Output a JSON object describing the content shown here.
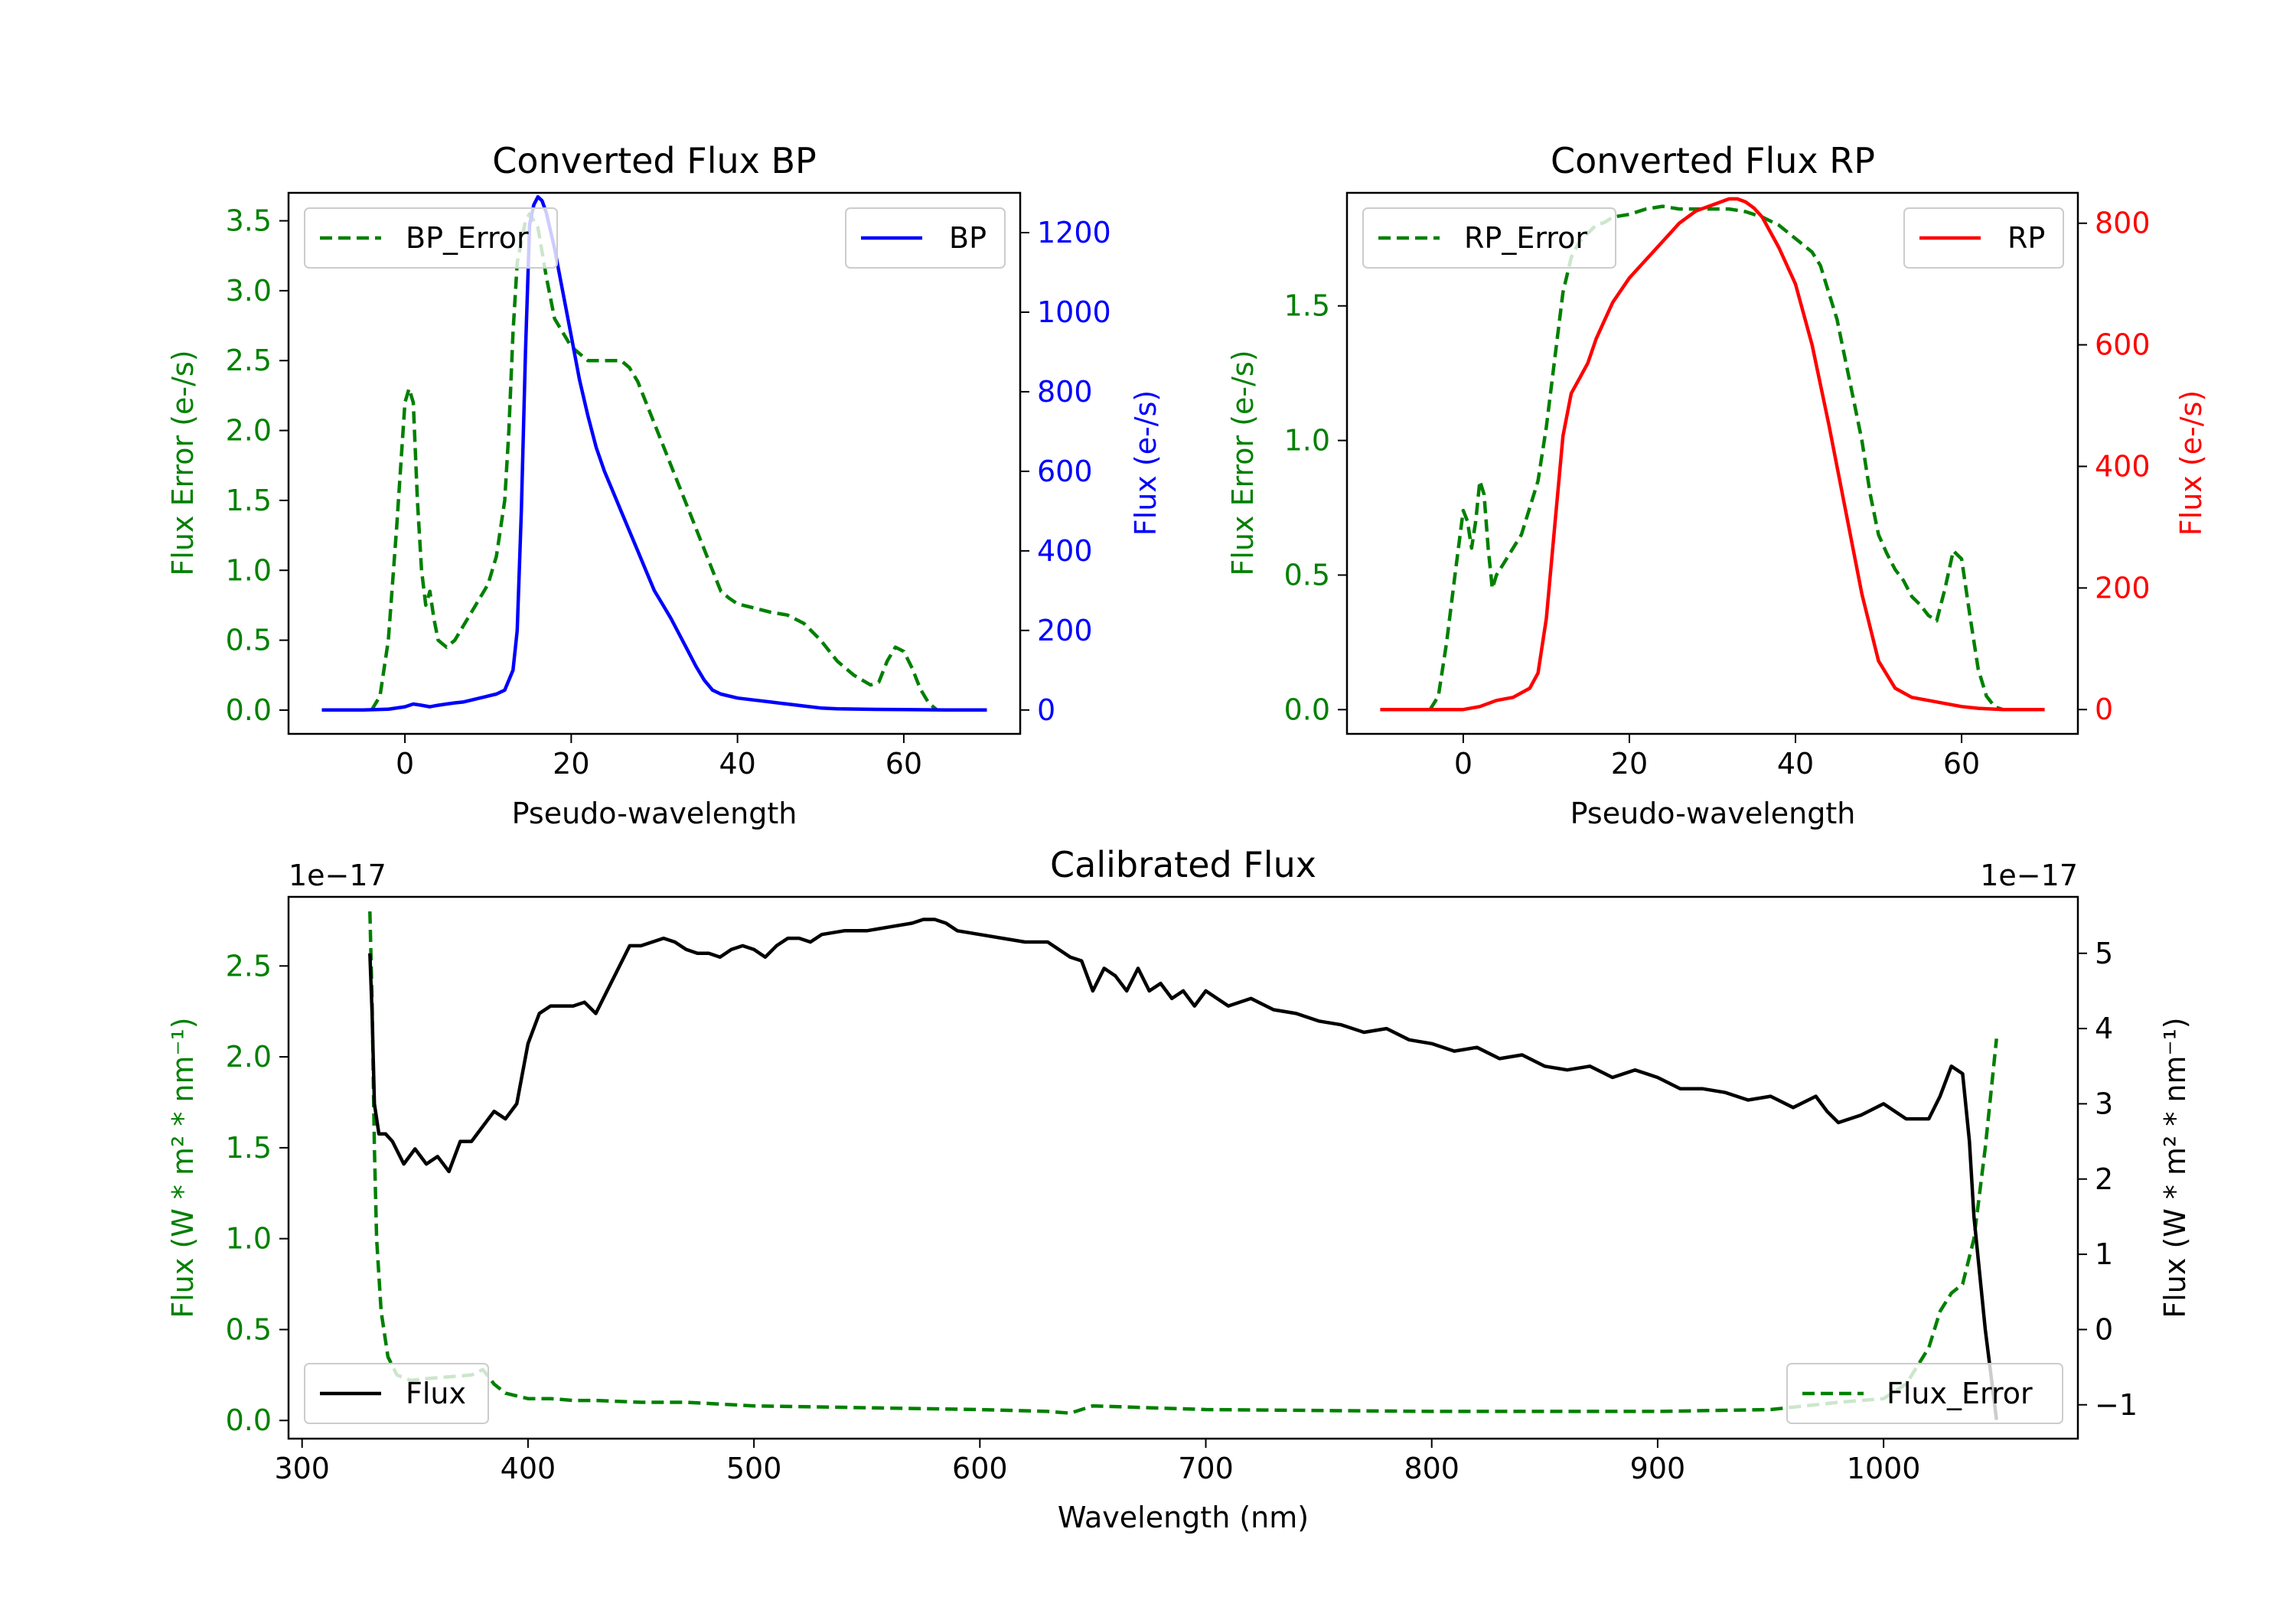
{
  "chart_data": [
    {
      "id": "bp",
      "type": "line",
      "title": "Converted Flux BP",
      "xlabel": "Pseudo-wavelength",
      "ylabel_left": "Flux Error (e-/s)",
      "ylabel_right": "Flux (e-/s)",
      "xlim": [
        -14,
        74
      ],
      "ylim_left": [
        -0.17,
        3.7
      ],
      "ylim_right": [
        -60,
        1300
      ],
      "xticks": [
        "0",
        "20",
        "40",
        "60"
      ],
      "xtick_values": [
        0,
        20,
        40,
        60
      ],
      "yticks_left": [
        "0.0",
        "0.5",
        "1.0",
        "1.5",
        "2.0",
        "2.5",
        "3.0",
        "3.5"
      ],
      "ytick_values_left": [
        0,
        0.5,
        1,
        1.5,
        2,
        2.5,
        3,
        3.5
      ],
      "yticks_right": [
        "0",
        "200",
        "400",
        "600",
        "800",
        "1000",
        "1200"
      ],
      "ytick_values_right": [
        0,
        200,
        400,
        600,
        800,
        1000,
        1200
      ],
      "left_color": "#008000",
      "right_color": "#0000ff",
      "series": [
        {
          "name": "BP_Error",
          "axis": "left",
          "color": "#008000",
          "style": "dashed",
          "legend": "top-left",
          "x": [
            -4,
            -3,
            -2,
            -1,
            0,
            0.5,
            1,
            1.5,
            2,
            2.5,
            3,
            3.5,
            4,
            5,
            6,
            7,
            8,
            10,
            11,
            12,
            12.5,
            13,
            13.5,
            14,
            14.5,
            15,
            16,
            17,
            18,
            19,
            20,
            21,
            22,
            23,
            24,
            25,
            26,
            27,
            28,
            29,
            30,
            31,
            32,
            33,
            34,
            35,
            36,
            37,
            38,
            39,
            40,
            42,
            44,
            46,
            48,
            50,
            52,
            54,
            56,
            57,
            58,
            59,
            60,
            61,
            62,
            63,
            64
          ],
          "y": [
            0.0,
            0.1,
            0.5,
            1.3,
            2.2,
            2.3,
            2.2,
            1.5,
            1.0,
            0.75,
            0.85,
            0.65,
            0.5,
            0.45,
            0.5,
            0.6,
            0.7,
            0.9,
            1.1,
            1.5,
            2.0,
            2.7,
            3.2,
            3.35,
            3.5,
            3.55,
            3.45,
            3.1,
            2.8,
            2.7,
            2.6,
            2.55,
            2.5,
            2.5,
            2.5,
            2.5,
            2.5,
            2.45,
            2.35,
            2.2,
            2.05,
            1.9,
            1.75,
            1.6,
            1.45,
            1.3,
            1.15,
            1.0,
            0.85,
            0.8,
            0.76,
            0.73,
            0.7,
            0.68,
            0.62,
            0.5,
            0.35,
            0.25,
            0.18,
            0.2,
            0.35,
            0.45,
            0.42,
            0.3,
            0.15,
            0.05,
            0.0
          ]
        },
        {
          "name": "BP",
          "axis": "right",
          "color": "#0000ff",
          "style": "solid",
          "legend": "top-right",
          "x": [
            -10,
            -5,
            -2,
            0,
            1,
            2,
            3,
            4,
            5,
            6,
            7,
            8,
            9,
            10,
            11,
            12,
            13,
            13.5,
            14,
            14.5,
            15,
            15.5,
            16,
            16.5,
            17,
            18,
            19,
            20,
            21,
            22,
            23,
            24,
            25,
            26,
            27,
            28,
            29,
            30,
            31,
            32,
            33,
            34,
            35,
            36,
            37,
            38,
            40,
            42,
            44,
            46,
            48,
            50,
            52,
            55,
            60,
            65,
            70
          ],
          "y": [
            0,
            0,
            2,
            8,
            15,
            12,
            8,
            12,
            15,
            18,
            20,
            25,
            30,
            35,
            40,
            50,
            100,
            200,
            500,
            900,
            1220,
            1270,
            1290,
            1280,
            1250,
            1160,
            1050,
            940,
            830,
            740,
            660,
            600,
            550,
            500,
            450,
            400,
            350,
            300,
            265,
            230,
            190,
            150,
            110,
            75,
            50,
            40,
            30,
            25,
            20,
            15,
            10,
            5,
            3,
            2,
            1,
            0,
            0
          ]
        }
      ]
    },
    {
      "id": "rp",
      "type": "line",
      "title": "Converted Flux RP",
      "xlabel": "Pseudo-wavelength",
      "ylabel_left": "Flux Error (e-/s)",
      "ylabel_right": "Flux (e-/s)",
      "xlim": [
        -14,
        74
      ],
      "ylim_left": [
        -0.09,
        1.92
      ],
      "ylim_right": [
        -40,
        850
      ],
      "xticks": [
        "0",
        "20",
        "40",
        "60"
      ],
      "xtick_values": [
        0,
        20,
        40,
        60
      ],
      "yticks_left": [
        "0.0",
        "0.5",
        "1.0",
        "1.5"
      ],
      "ytick_values_left": [
        0,
        0.5,
        1,
        1.5
      ],
      "yticks_right": [
        "0",
        "200",
        "400",
        "600",
        "800"
      ],
      "ytick_values_right": [
        0,
        200,
        400,
        600,
        800
      ],
      "left_color": "#008000",
      "right_color": "#ff0000",
      "series": [
        {
          "name": "RP_Error",
          "axis": "left",
          "color": "#008000",
          "style": "dashed",
          "legend": "top-left",
          "x": [
            -4,
            -3,
            -2,
            -1,
            0,
            0.5,
            1,
            1.5,
            2,
            2.5,
            3,
            3.5,
            4,
            5,
            6,
            7,
            8,
            9,
            10,
            11,
            12,
            13,
            14,
            15,
            16,
            17,
            18,
            20,
            22,
            24,
            26,
            28,
            30,
            32,
            34,
            36,
            38,
            40,
            42,
            43,
            44,
            45,
            46,
            47,
            48,
            49,
            50,
            51,
            52,
            53,
            54,
            55,
            56,
            57,
            58,
            59,
            60,
            61,
            62,
            63,
            64,
            65
          ],
          "y": [
            0.0,
            0.05,
            0.25,
            0.5,
            0.74,
            0.7,
            0.6,
            0.7,
            0.85,
            0.8,
            0.6,
            0.45,
            0.5,
            0.55,
            0.6,
            0.65,
            0.75,
            0.85,
            1.05,
            1.3,
            1.55,
            1.68,
            1.74,
            1.77,
            1.8,
            1.81,
            1.83,
            1.84,
            1.86,
            1.87,
            1.86,
            1.86,
            1.86,
            1.86,
            1.85,
            1.83,
            1.8,
            1.75,
            1.7,
            1.65,
            1.55,
            1.45,
            1.3,
            1.15,
            1.0,
            0.8,
            0.65,
            0.58,
            0.52,
            0.48,
            0.42,
            0.39,
            0.35,
            0.33,
            0.45,
            0.59,
            0.56,
            0.35,
            0.15,
            0.05,
            0.01,
            0.0
          ]
        },
        {
          "name": "RP",
          "axis": "right",
          "color": "#ff0000",
          "style": "solid",
          "legend": "top-right",
          "x": [
            -10,
            -5,
            -2,
            0,
            2,
            4,
            6,
            8,
            9,
            10,
            11,
            12,
            13,
            14,
            15,
            16,
            17,
            18,
            20,
            22,
            24,
            26,
            28,
            30,
            31,
            32,
            33,
            34,
            35,
            36,
            38,
            40,
            42,
            44,
            46,
            48,
            50,
            52,
            54,
            56,
            58,
            60,
            62,
            65,
            70
          ],
          "y": [
            0,
            0,
            0,
            0,
            5,
            15,
            20,
            35,
            60,
            150,
            300,
            450,
            520,
            545,
            570,
            610,
            640,
            670,
            710,
            740,
            770,
            800,
            820,
            830,
            835,
            840,
            840,
            835,
            825,
            810,
            760,
            700,
            600,
            470,
            330,
            190,
            80,
            35,
            20,
            15,
            10,
            5,
            2,
            0,
            0
          ]
        }
      ]
    },
    {
      "id": "cal",
      "type": "line",
      "title": "Calibrated Flux",
      "xlabel": "Wavelength (nm)",
      "ylabel_left": "Flux (W * m² * nm⁻¹)",
      "ylabel_right": "Flux (W * m² * nm⁻¹)",
      "offset_left": "1e−17",
      "offset_right": "1e−17",
      "xlim": [
        294,
        1086
      ],
      "ylim_left": [
        -0.1,
        2.88
      ],
      "ylim_right": [
        -1.45,
        5.75
      ],
      "xticks": [
        "300",
        "400",
        "500",
        "600",
        "700",
        "800",
        "900",
        "1000"
      ],
      "xtick_values": [
        300,
        400,
        500,
        600,
        700,
        800,
        900,
        1000
      ],
      "yticks_left": [
        "0.0",
        "0.5",
        "1.0",
        "1.5",
        "2.0",
        "2.5"
      ],
      "ytick_values_left": [
        0,
        0.5,
        1,
        1.5,
        2,
        2.5
      ],
      "yticks_right": [
        "−1",
        "0",
        "1",
        "2",
        "3",
        "4",
        "5"
      ],
      "ytick_values_right": [
        -1,
        0,
        1,
        2,
        3,
        4,
        5
      ],
      "left_color": "#008000",
      "right_color": "#000000",
      "series": [
        {
          "name": "Flux_Error",
          "axis": "left",
          "color": "#008000",
          "style": "dashed",
          "legend": "bottom-right",
          "x": [
            330,
            331,
            332,
            333,
            335,
            338,
            342,
            348,
            355,
            365,
            375,
            380,
            385,
            390,
            400,
            410,
            420,
            430,
            450,
            470,
            500,
            550,
            600,
            630,
            640,
            650,
            700,
            800,
            900,
            950,
            980,
            1000,
            1010,
            1015,
            1020,
            1025,
            1030,
            1035,
            1040,
            1045,
            1050
          ],
          "y": [
            2.8,
            2.3,
            1.5,
            1.0,
            0.6,
            0.35,
            0.25,
            0.22,
            0.23,
            0.24,
            0.25,
            0.28,
            0.2,
            0.15,
            0.12,
            0.12,
            0.11,
            0.11,
            0.1,
            0.1,
            0.08,
            0.07,
            0.06,
            0.05,
            0.04,
            0.08,
            0.06,
            0.05,
            0.05,
            0.06,
            0.1,
            0.12,
            0.2,
            0.3,
            0.4,
            0.6,
            0.7,
            0.75,
            1.0,
            1.5,
            2.1
          ]
        },
        {
          "name": "Flux",
          "axis": "right",
          "color": "#000000",
          "style": "solid",
          "legend": "bottom-left",
          "x": [
            330,
            331,
            332,
            334,
            337,
            340,
            345,
            350,
            355,
            360,
            365,
            370,
            375,
            380,
            385,
            390,
            395,
            400,
            405,
            410,
            420,
            425,
            430,
            435,
            440,
            445,
            450,
            455,
            460,
            465,
            470,
            475,
            480,
            485,
            490,
            495,
            500,
            505,
            510,
            515,
            520,
            525,
            530,
            540,
            550,
            560,
            570,
            575,
            580,
            585,
            590,
            600,
            610,
            620,
            630,
            640,
            645,
            650,
            655,
            660,
            665,
            670,
            675,
            680,
            685,
            690,
            695,
            700,
            710,
            720,
            730,
            740,
            750,
            760,
            770,
            780,
            790,
            800,
            810,
            820,
            830,
            840,
            850,
            860,
            870,
            880,
            890,
            900,
            910,
            920,
            930,
            940,
            950,
            960,
            970,
            975,
            980,
            990,
            1000,
            1010,
            1020,
            1025,
            1030,
            1035,
            1038,
            1040,
            1045,
            1050
          ],
          "y": [
            5.0,
            4.2,
            3.0,
            2.6,
            2.6,
            2.5,
            2.2,
            2.4,
            2.2,
            2.3,
            2.1,
            2.5,
            2.5,
            2.7,
            2.9,
            2.8,
            3.0,
            3.8,
            4.2,
            4.3,
            4.3,
            4.35,
            4.2,
            4.5,
            4.8,
            5.1,
            5.1,
            5.15,
            5.2,
            5.15,
            5.05,
            5.0,
            5.0,
            4.95,
            5.05,
            5.1,
            5.05,
            4.95,
            5.1,
            5.2,
            5.2,
            5.15,
            5.25,
            5.3,
            5.3,
            5.35,
            5.4,
            5.45,
            5.45,
            5.4,
            5.3,
            5.25,
            5.2,
            5.15,
            5.15,
            4.95,
            4.9,
            4.5,
            4.8,
            4.7,
            4.5,
            4.8,
            4.5,
            4.6,
            4.4,
            4.5,
            4.3,
            4.5,
            4.3,
            4.4,
            4.25,
            4.2,
            4.1,
            4.05,
            3.95,
            4.0,
            3.85,
            3.8,
            3.7,
            3.75,
            3.6,
            3.65,
            3.5,
            3.45,
            3.5,
            3.35,
            3.45,
            3.35,
            3.2,
            3.2,
            3.15,
            3.05,
            3.1,
            2.95,
            3.1,
            2.9,
            2.75,
            2.85,
            3.0,
            2.8,
            2.8,
            3.1,
            3.5,
            3.4,
            2.5,
            1.5,
            0.0,
            -1.2
          ]
        }
      ]
    }
  ]
}
